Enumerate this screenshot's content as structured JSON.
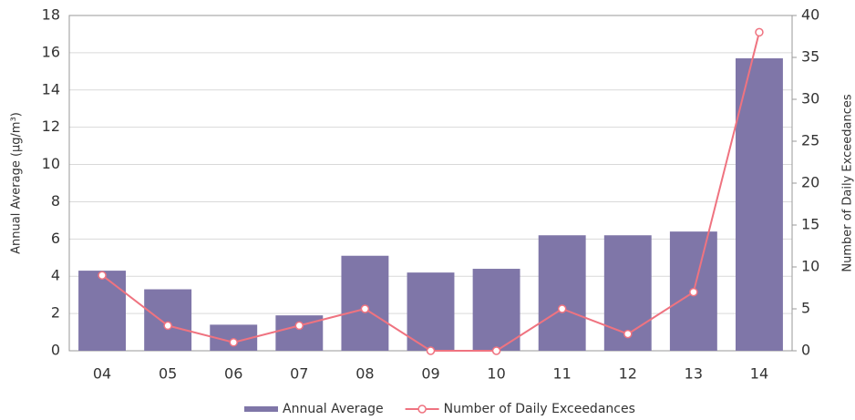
{
  "chart_data": {
    "type": "bar",
    "categories": [
      "04",
      "05",
      "06",
      "07",
      "08",
      "09",
      "10",
      "11",
      "12",
      "13",
      "14"
    ],
    "ylabel": "Annual Average (μg/m³)",
    "y2label": "Number of Daily Exceedances",
    "ylim": [
      0,
      18
    ],
    "yticks": [
      0,
      2,
      4,
      6,
      8,
      10,
      12,
      14,
      16,
      18
    ],
    "y2lim": [
      0,
      40
    ],
    "y2ticks": [
      0,
      5,
      10,
      15,
      20,
      25,
      30,
      35,
      40
    ],
    "grid": true,
    "legend": "bottom",
    "series": [
      {
        "name": "Annual Average",
        "type": "bar",
        "color": "#7f76a8",
        "values": [
          4.3,
          3.3,
          1.4,
          1.9,
          5.1,
          4.2,
          4.4,
          6.2,
          6.2,
          6.4,
          15.7
        ]
      },
      {
        "name": "Number of Daily Exceedances",
        "type": "line",
        "axis": "y2",
        "color": "#ef7380",
        "values": [
          9,
          3,
          1,
          3,
          5,
          0,
          0,
          5,
          2,
          7,
          38
        ]
      }
    ]
  }
}
